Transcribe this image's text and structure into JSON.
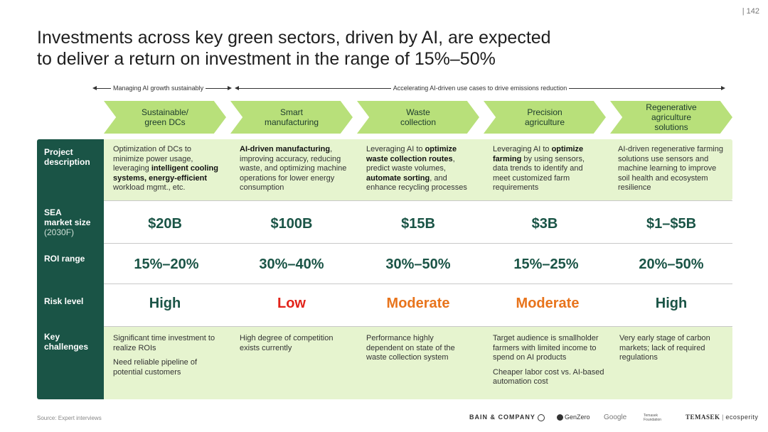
{
  "page_number": "|  142",
  "title_line1": "Investments across key green sectors, driven by AI, are expected",
  "title_line2": "to deliver a return on investment in the range of 15%–50%",
  "banner": {
    "left": "Managing AI growth sustainably",
    "right": "Accelerating AI-driven use cases to drive emissions reduction"
  },
  "sectors": [
    {
      "line1": "Sustainable/",
      "line2": "green DCs"
    },
    {
      "line1": "Smart",
      "line2": "manufacturing"
    },
    {
      "line1": "Waste",
      "line2": "collection"
    },
    {
      "line1": "Precision",
      "line2": "agriculture"
    },
    {
      "line1": "Regenerative",
      "line2": "agriculture solutions"
    }
  ],
  "row_labels": {
    "project_line1": "Project",
    "project_line2": "description",
    "market_line1": "SEA",
    "market_line2": "market size",
    "market_line3": "(2030F)",
    "roi": "ROI range",
    "risk": "Risk level",
    "key_line1": "Key",
    "key_line2": "challenges"
  },
  "descriptions": [
    {
      "a": "Optimization of DCs to minimize power usage, leveraging ",
      "b": "intelligent cooling systems, energy-efficient",
      "c": " workload mgmt., etc."
    },
    {
      "a": "",
      "b": "AI-driven manufacturing",
      "c": ", improving accuracy, reducing waste, and optimizing machine operations for lower energy consumption"
    },
    {
      "a": "Leveraging AI to ",
      "b": "optimize waste collection routes",
      "c": ", predict waste volumes, ",
      "d": "automate sorting",
      "e": ", and enhance recycling processes"
    },
    {
      "a": "Leveraging AI to ",
      "b": "optimize farming",
      "c": " by using sensors, data trends to identify and meet customized farm requirements"
    },
    {
      "a": "AI-driven regenerative farming solutions use sensors and machine learning to improve soil health and ecosystem resilience",
      "b": "",
      "c": ""
    }
  ],
  "market_size": [
    "$20B",
    "$100B",
    "$15B",
    "$3B",
    "$1–$5B"
  ],
  "roi_range": [
    "15%–20%",
    "30%–40%",
    "30%–50%",
    "15%–25%",
    "20%–50%"
  ],
  "risk_level": [
    "High",
    "Low",
    "Moderate",
    "Moderate",
    "High"
  ],
  "challenges": [
    [
      "Significant time investment to realize ROIs",
      "Need reliable pipeline of potential customers"
    ],
    [
      "High degree of competition exists currently"
    ],
    [
      "Performance highly dependent on state of the waste collection system"
    ],
    [
      "Target audience is smallholder farmers with limited income to spend on AI products",
      "Cheaper labor cost vs. AI-based automation cost"
    ],
    [
      "Very early stage of carbon markets; lack of required regulations"
    ]
  ],
  "source": "Source: Expert interviews",
  "logos": [
    "BAIN & COMPANY",
    "GenZero",
    "Google",
    "Temasek Foundation",
    "TEMASEK",
    "ecosperity"
  ],
  "colors": {
    "dark_green": "#1a5446",
    "light_green": "#e6f4cf",
    "chevron": "#b8e07a",
    "risk_low": "#e2231a",
    "risk_moderate": "#e8741c"
  }
}
